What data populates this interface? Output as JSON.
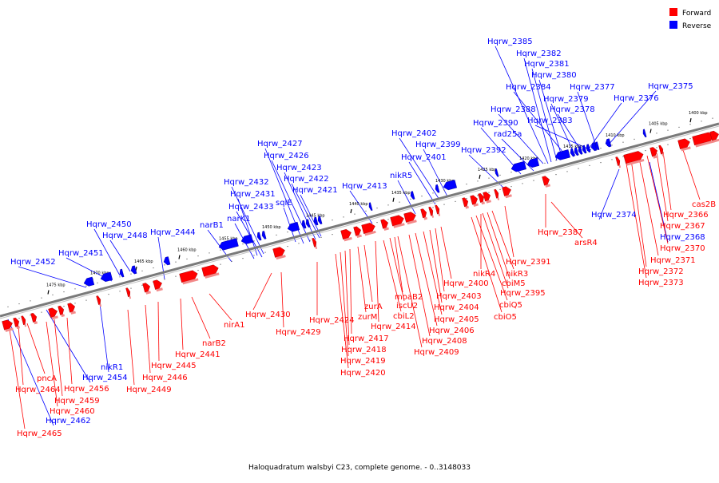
{
  "caption": "Haloquadratum walsbyi C23, complete genome. - 0..3148033",
  "legend": [
    {
      "label": "Forward",
      "color": "#ff0000"
    },
    {
      "label": "Reverse",
      "color": "#0000ff"
    }
  ],
  "colors": {
    "forward": "#ff0000",
    "reverse": "#0000ff",
    "backbone": "#808080"
  },
  "kbp_marks": [
    "1400 kbp",
    "1405 kbp",
    "1410 kbp",
    "1415 kbp",
    "1420 kbp",
    "1425 kbp",
    "1430 kbp",
    "1435 kbp",
    "1440 kbp",
    "1445 kbp",
    "1450 kbp",
    "1455 kbp",
    "1460 kbp",
    "1465 kbp",
    "1470 kbp",
    "1475 kbp"
  ],
  "reverse_labels": [
    "Hqrw_2385",
    "Hqrw_2382",
    "Hqrw_2381",
    "Hqrw_2380",
    "Hqrw_2384",
    "Hqrw_2377",
    "Hqrw_2375",
    "Hqrw_2379",
    "Hqrw_2376",
    "Hqrw_2388",
    "Hqrw_2378",
    "Hqrw_2390",
    "Hqrw_2383",
    "rad25a",
    "Hqrw_2402",
    "Hqrw_2427",
    "Hqrw_2399",
    "Hqrw_2392",
    "Hqrw_2426",
    "Hqrw_2401",
    "Hqrw_2423",
    "Hqrw_2422",
    "Hqrw_2432",
    "Hqrw_2421",
    "nikR5",
    "Hqrw_2413",
    "Hqrw_2431",
    "sqlE",
    "Hqrw_2433",
    "narK1",
    "narB1",
    "Hqrw_2450",
    "Hqrw_2448",
    "Hqrw_2444",
    "Hqrw_2451",
    "Hqrw_2452",
    "Hqrw_2374",
    "Hqrw_2368",
    "nikR1",
    "Hqrw_2454",
    "Hqrw_2462"
  ],
  "forward_labels": [
    "cas2B",
    "Hqrw_2366",
    "Hqrw_2367",
    "Hqrw_2370",
    "Hqrw_2371",
    "Hqrw_2372",
    "Hqrw_2373",
    "Hqrw_2387",
    "arsR4",
    "Hqrw_2391",
    "nikR4",
    "nikR3",
    "cbiM5",
    "Hqrw_2395",
    "cbiQ5",
    "cbiO5",
    "Hqrw_2400",
    "Hqrw_2403",
    "Hqrw_2404",
    "Hqrw_2405",
    "Hqrw_2406",
    "Hqrw_2408",
    "Hqrw_2409",
    "moaB2",
    "iscU2",
    "cbiL2",
    "Hqrw_2414",
    "zurA",
    "zurM",
    "Hqrw_2417",
    "Hqrw_2418",
    "Hqrw_2419",
    "Hqrw_2420",
    "Hqrw_2424",
    "Hqrw_2429",
    "Hqrw_2430",
    "nirA1",
    "narB2",
    "Hqrw_2441",
    "Hqrw_2445",
    "Hqrw_2446",
    "Hqrw_2449",
    "pncA",
    "Hqrw_2464",
    "Hqrw_2456",
    "Hqrw_2459",
    "Hqrw_2460",
    "Hqrw_2465"
  ]
}
